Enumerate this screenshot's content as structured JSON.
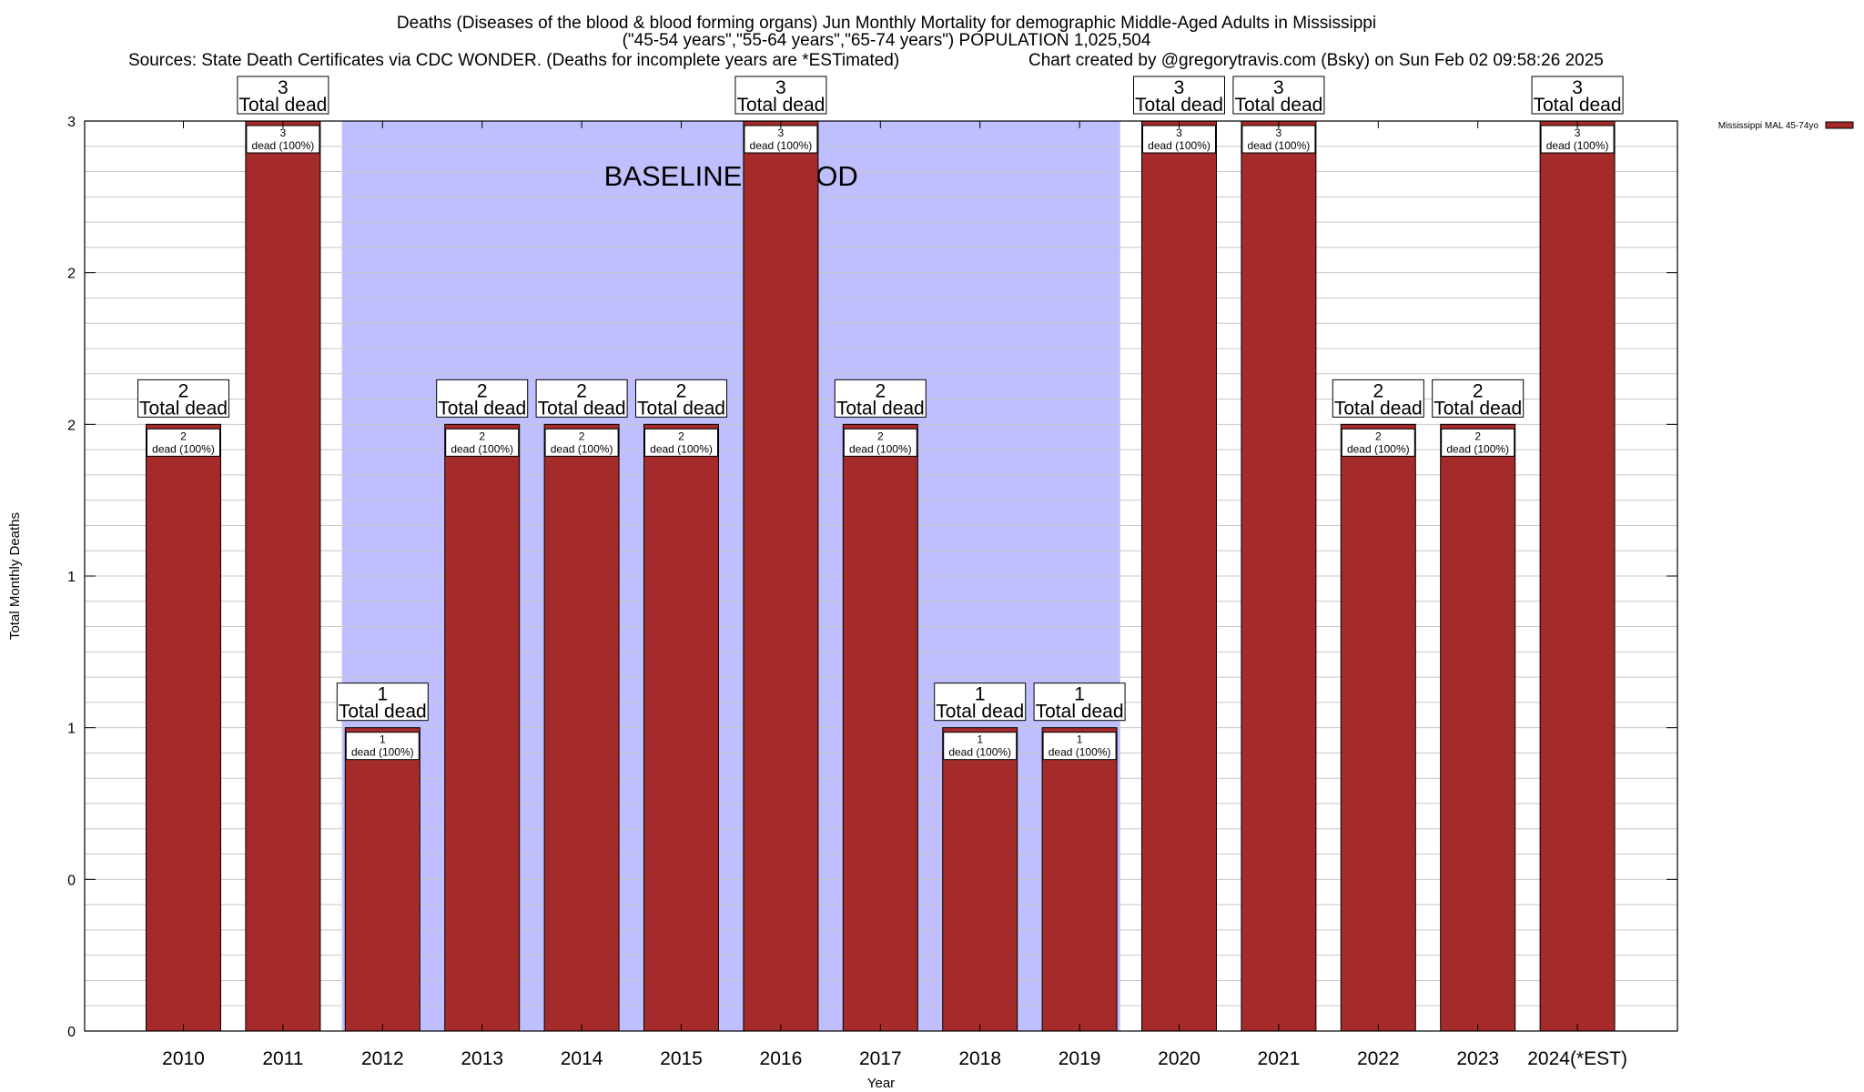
{
  "chart_data": {
    "type": "bar",
    "title_lines": [
      "Deaths (Diseases of the blood & blood forming organs) Jun Monthly Mortality for demographic Middle-Aged Adults in Mississippi",
      "(\"45-54 years\",\"55-64 years\",\"65-74 years\") POPULATION 1,025,504"
    ],
    "sources": "Sources: State Death Certificates via CDC WONDER. (Deaths for incomplete years are *ESTimated)",
    "credit": "Chart created by @gregorytravis.com (Bsky) on Sun Feb 02 09:58:26 2025",
    "xlabel": "Year",
    "ylabel": "Total Monthly Deaths",
    "ylim": [
      0,
      3
    ],
    "yticks": [
      0,
      0.5,
      1,
      1.5,
      2,
      2.5,
      3
    ],
    "ytick_labels": [
      "0",
      "0",
      "1",
      "1",
      "2",
      "2",
      "3"
    ],
    "categories": [
      "2010",
      "2011",
      "2012",
      "2013",
      "2014",
      "2015",
      "2016",
      "2017",
      "2018",
      "2019",
      "2020",
      "2021",
      "2022",
      "2023",
      "2024(*EST)"
    ],
    "series": [
      {
        "name": "Mississippi MAL 45-74yo",
        "color": "#a52a2a",
        "values": [
          2,
          3,
          1,
          2,
          2,
          2,
          3,
          2,
          1,
          1,
          3,
          3,
          2,
          2,
          3
        ]
      }
    ],
    "total_label": "Total dead",
    "inner_label_suffix": "dead (100%)",
    "baseline": {
      "label": "BASELINE PERIOD",
      "from": "2012",
      "to": "2019",
      "color": "#bfbfff"
    },
    "grid": true,
    "legend_position": "top-right"
  }
}
